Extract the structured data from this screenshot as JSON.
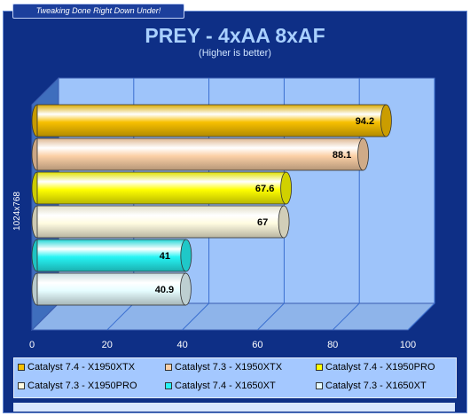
{
  "header": {
    "tagline": "Tweaking Done Right Down Under!"
  },
  "chart_data": {
    "type": "bar",
    "orientation": "horizontal",
    "title": "PREY - 4xAA 8xAF",
    "subtitle": "(Higher is better)",
    "ylabel": "1024x768",
    "xlim": [
      0,
      100
    ],
    "xticks": [
      "0",
      "20",
      "40",
      "60",
      "80",
      "100"
    ],
    "grid": true,
    "legend_position": "bottom",
    "series": [
      {
        "name": "Catalyst 7.4 - X1950XTX",
        "value": 94.2,
        "label": "94.2",
        "color": "#f7c000"
      },
      {
        "name": "Catalyst 7.3 - X1950XTX",
        "value": 88.1,
        "label": "88.1",
        "color": "#fcd0a6"
      },
      {
        "name": "Catalyst 7.4 - X1950PRO",
        "value": 67.6,
        "label": "67.6",
        "color": "#ffff00"
      },
      {
        "name": "Catalyst 7.3 - X1950PRO",
        "value": 67,
        "label": "67",
        "color": "#fffbe0"
      },
      {
        "name": "Catalyst 7.4 - X1650XT",
        "value": 41,
        "label": "41",
        "color": "#26f4f4"
      },
      {
        "name": "Catalyst 7.3 - X1650XT",
        "value": 40.9,
        "label": "40.9",
        "color": "#e6fdff"
      }
    ]
  }
}
